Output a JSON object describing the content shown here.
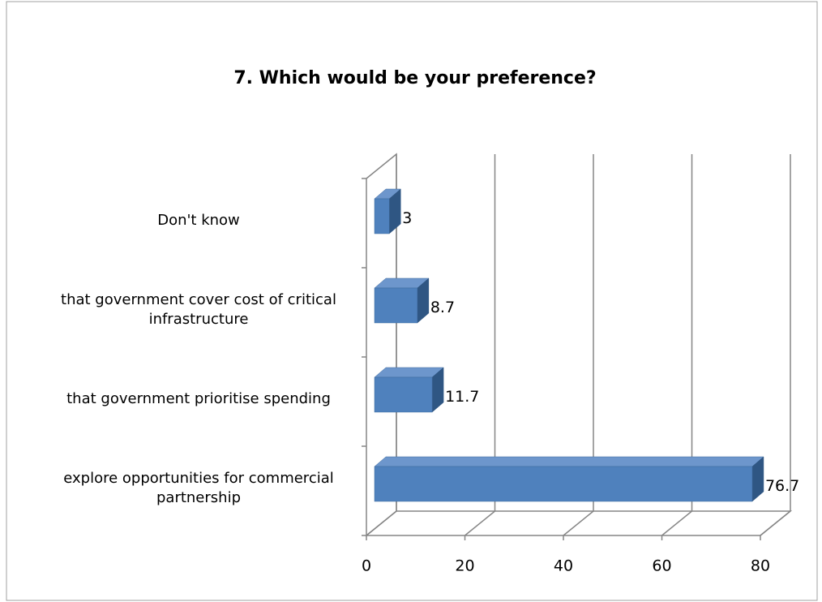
{
  "chart_data": {
    "type": "bar3d_horizontal",
    "title": "7.  Which would be your preference?",
    "categories": [
      "Don't know",
      "that government cover cost of critical infrastructure",
      "that government prioritise spending",
      "explore opportunities for commercial partnership"
    ],
    "values": [
      3,
      8.7,
      11.7,
      76.7
    ],
    "color": "#4f81bd",
    "xlim": [
      0,
      80
    ],
    "xticks": [
      0,
      20,
      40,
      60,
      80
    ],
    "grid": true
  }
}
